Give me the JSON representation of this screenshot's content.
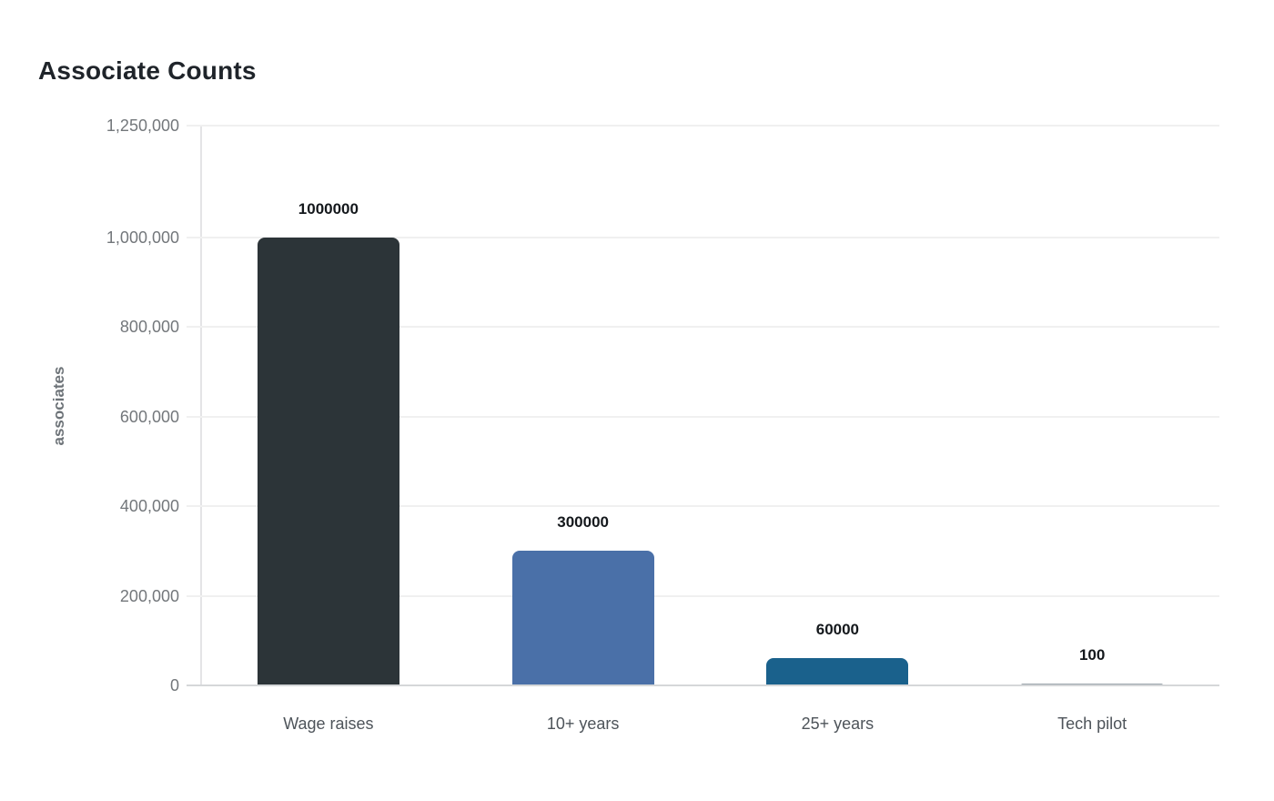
{
  "chart_data": {
    "type": "bar",
    "title": "Associate Counts",
    "xlabel": "",
    "ylabel": "associates",
    "categories": [
      "Wage raises",
      "10+ years",
      "25+ years",
      "Tech pilot"
    ],
    "values": [
      1000000,
      300000,
      60000,
      100
    ],
    "value_labels": [
      "1000000",
      "300000",
      "60000",
      "100"
    ],
    "bar_colors": [
      "#2c3438",
      "#4a70a8",
      "#1a618c",
      "#9aa4ab"
    ],
    "ylim": [
      0,
      1250000
    ],
    "yticks": [
      {
        "value": 0,
        "label": "0"
      },
      {
        "value": 200000,
        "label": "200,000"
      },
      {
        "value": 400000,
        "label": "400,000"
      },
      {
        "value": 600000,
        "label": "600,000"
      },
      {
        "value": 800000,
        "label": "800,000"
      },
      {
        "value": 1000000,
        "label": "1,000,000"
      },
      {
        "value": 1250000,
        "label": "1,250,000"
      }
    ],
    "grid": true,
    "legend_position": "none"
  },
  "styles": {
    "background": "#ffffff",
    "title_color": "#1f242a",
    "tick_label_color": "#73777b",
    "category_label_color": "#4e545a",
    "value_label_color": "#14181c",
    "grid_color": "#f0f0f0",
    "baseline_color": "#d5d7d9",
    "axis_line_color": "#e4e4e6"
  }
}
